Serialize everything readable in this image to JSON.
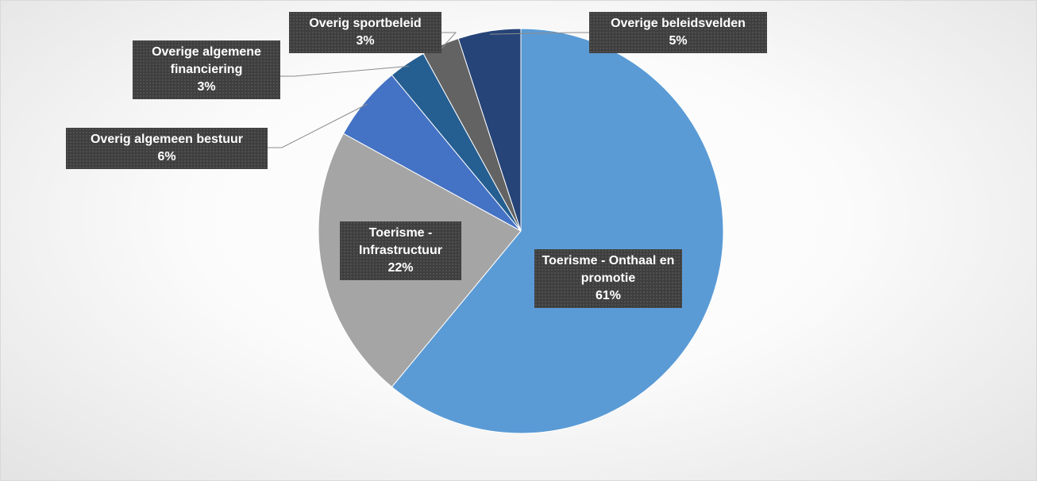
{
  "chart_data": {
    "type": "pie",
    "categories": [
      "Toerisme - Onthaal en promotie",
      "Toerisme - Infrastructuur",
      "Overig algemeen bestuur",
      "Overige algemene financiering",
      "Overig sportbeleid",
      "Overige beleidsvelden"
    ],
    "values": [
      61,
      22,
      6,
      3,
      3,
      5
    ],
    "value_labels": [
      "61%",
      "22%",
      "6%",
      "3%",
      "3%",
      "5%"
    ],
    "colors": [
      "#5b9bd5",
      "#a5a5a5",
      "#4472c4",
      "#255e91",
      "#636363",
      "#264478"
    ]
  }
}
